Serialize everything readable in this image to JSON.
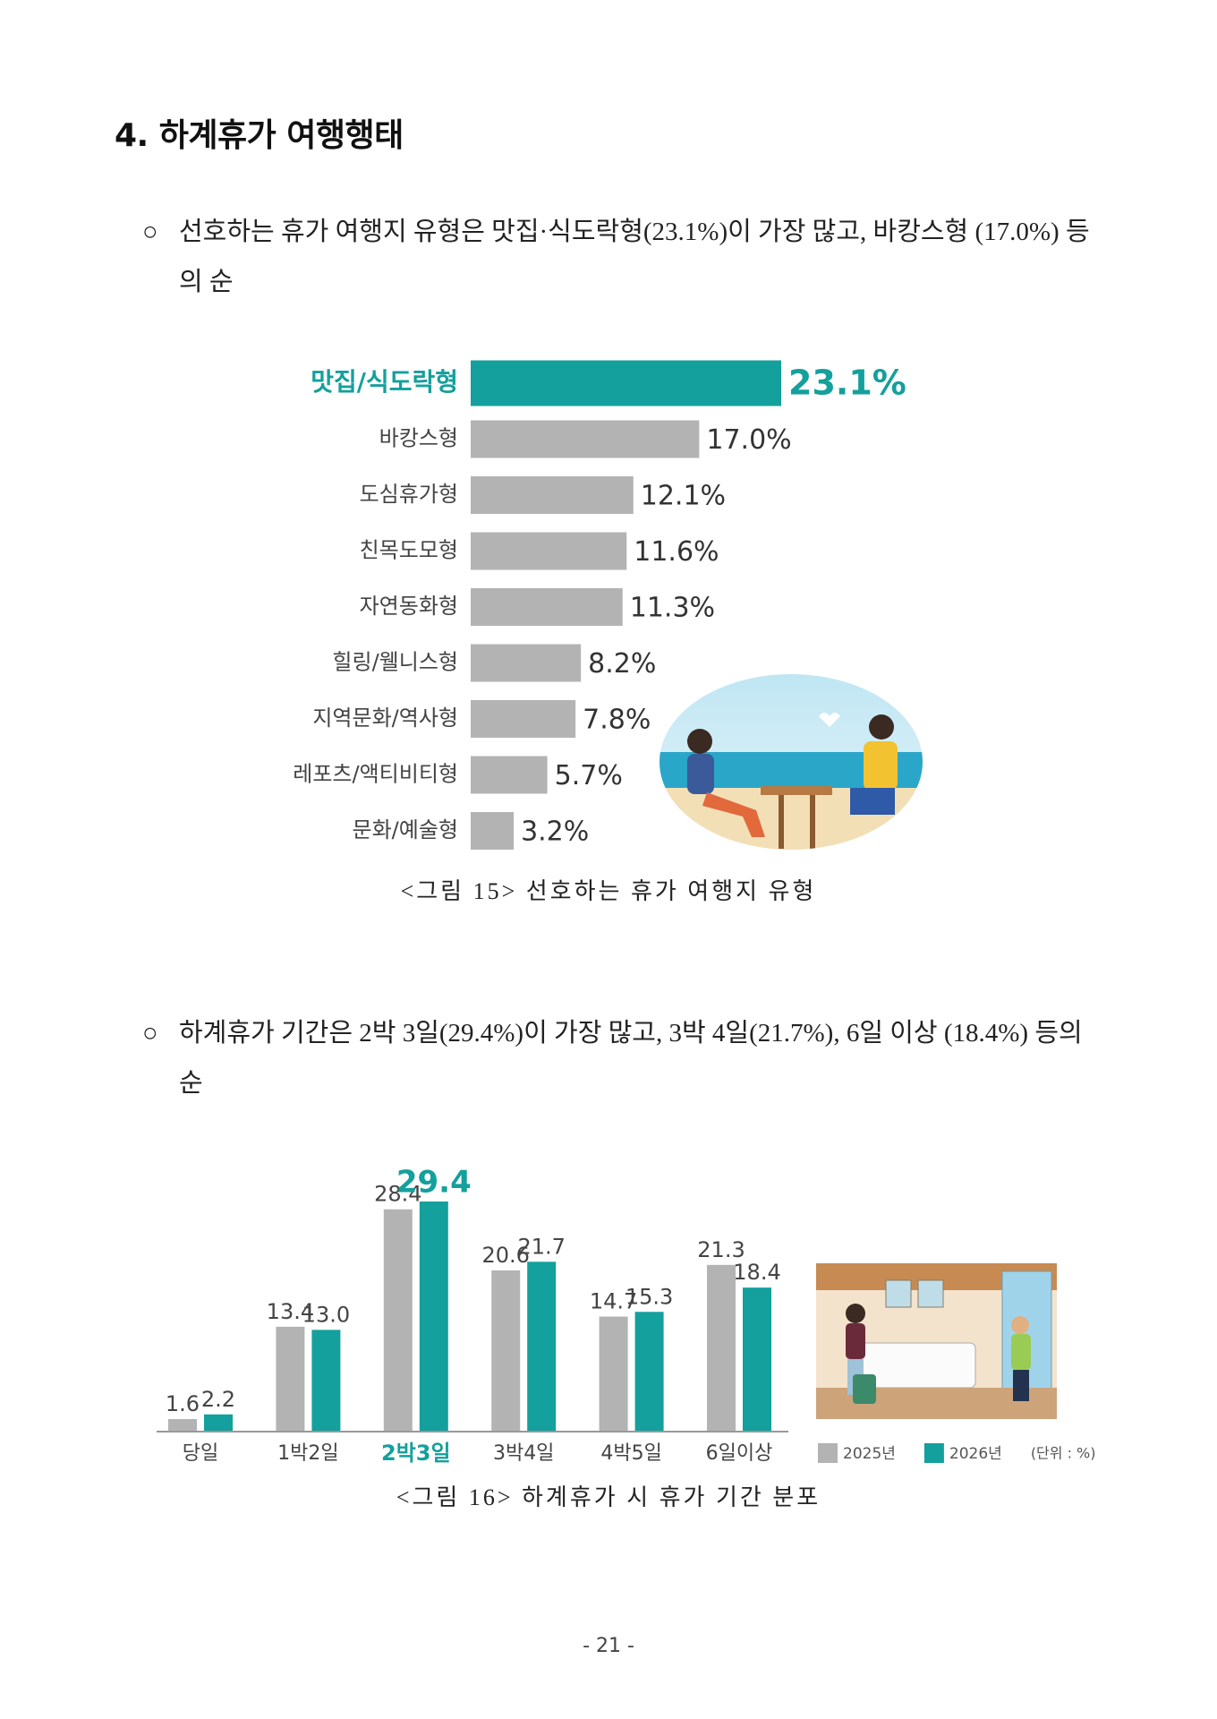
{
  "header": {
    "title": "4. 하계휴가 여행행태"
  },
  "paragraphs": [
    {
      "marker": "○",
      "text": "선호하는 휴가 여행지 유형은 맛집·식도락형(23.1%)이 가장 많고, 바캉스형 (17.0%) 등의 순"
    },
    {
      "marker": "○",
      "text": "하계휴가 기간은 2박 3일(29.4%)이 가장 많고, 3박 4일(21.7%), 6일 이상 (18.4%) 등의 순"
    }
  ],
  "chart_data": [
    {
      "type": "hbar",
      "categories": [
        "맛집/식도락형",
        "바캉스형",
        "도심휴가형",
        "친목도모형",
        "자연동화형",
        "힐링/웰니스형",
        "지역문화/역사형",
        "레포츠/액티비티형",
        "문화/예술형"
      ],
      "values": [
        23.1,
        17.0,
        12.1,
        11.6,
        11.3,
        8.2,
        7.8,
        5.7,
        3.2
      ],
      "value_labels": [
        "23.1%",
        "17.0%",
        "12.1%",
        "11.6%",
        "11.3%",
        "8.2%",
        "7.8%",
        "5.7%",
        "3.2%"
      ],
      "color": "#b3b3b3",
      "highlight": {
        "index": 0,
        "color": "#14a09c"
      },
      "caption": "<그림 15> 선호하는 휴가 여행지 유형"
    },
    {
      "type": "grouped_bar",
      "categories": [
        "당일",
        "1박2일",
        "2박3일",
        "3박4일",
        "4박5일",
        "6일이상"
      ],
      "series": [
        {
          "name": "2025년",
          "color": "#b3b3b3",
          "values": [
            1.6,
            13.4,
            28.4,
            20.6,
            14.7,
            21.3
          ]
        },
        {
          "name": "2026년",
          "color": "#14a09c",
          "values": [
            2.2,
            13.0,
            29.4,
            21.7,
            15.3,
            18.4
          ],
          "value_labels": [
            "2.2",
            "13.0",
            "29.4",
            "21.7",
            "15.3",
            "18.4"
          ]
        }
      ],
      "highlight": {
        "index": 2,
        "color": "#14a09c"
      },
      "legend": "bottom-right",
      "unit_note": "(단위 : %)",
      "caption": "<그림 16> 하계휴가 시 휴가 기간 분포"
    }
  ],
  "footer": {
    "page_number": "- 21 -"
  }
}
